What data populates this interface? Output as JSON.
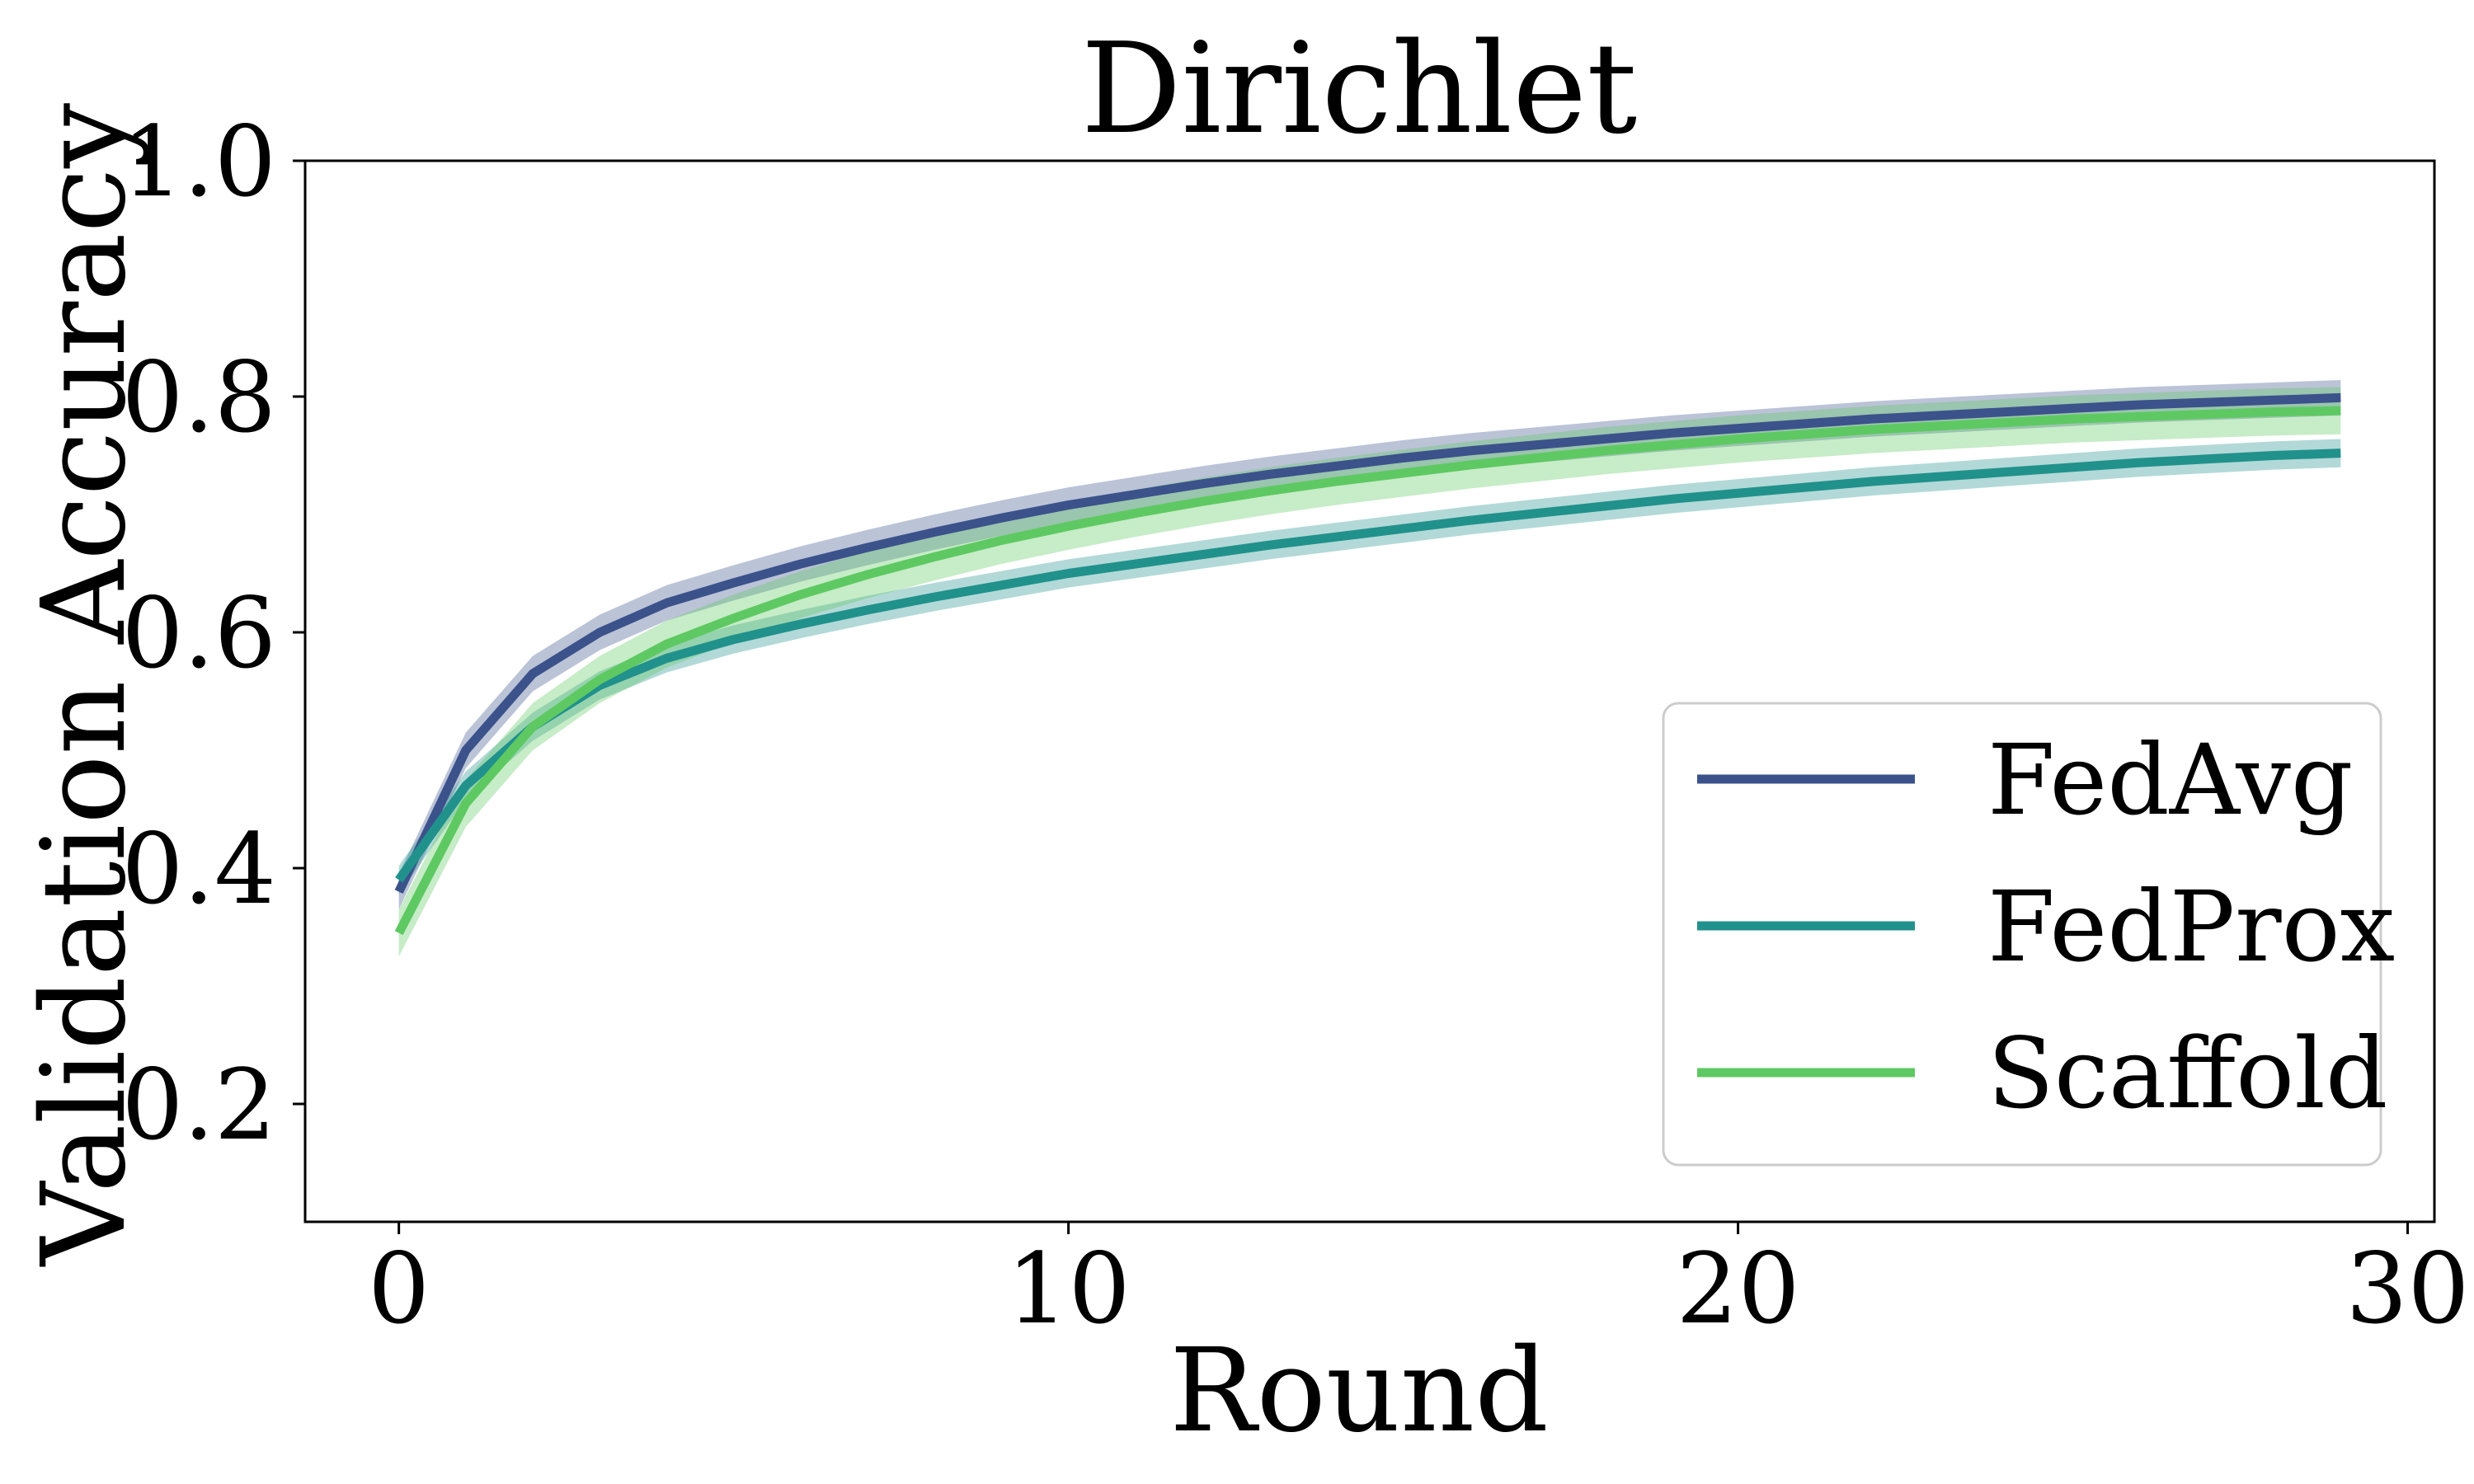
{
  "chart_data": {
    "type": "line",
    "title": "Dirichlet",
    "xlabel": "Round",
    "ylabel": "Validation Accuracy",
    "xlim": [
      -1.4,
      30.4
    ],
    "ylim": [
      0.1,
      1.0
    ],
    "xticks": [
      0,
      10,
      20,
      30
    ],
    "xtick_labels": [
      "0",
      "10",
      "20",
      "30"
    ],
    "yticks": [
      0.2,
      0.4,
      0.6,
      0.8,
      1.0
    ],
    "ytick_labels": [
      "0.2",
      "0.4",
      "0.6",
      "0.8",
      "1.0"
    ],
    "grid": false,
    "legend_position": "lower-right",
    "x": [
      0,
      1,
      2,
      3,
      4,
      5,
      6,
      7,
      8,
      9,
      10,
      11,
      12,
      13,
      14,
      15,
      16,
      17,
      18,
      19,
      20,
      21,
      22,
      23,
      24,
      25,
      26,
      27,
      28,
      29
    ],
    "series": [
      {
        "name": "FedAvg",
        "color": "#3b528b",
        "values": [
          0.38,
          0.5,
          0.565,
          0.6,
          0.625,
          0.642,
          0.658,
          0.672,
          0.685,
          0.697,
          0.708,
          0.717,
          0.726,
          0.734,
          0.741,
          0.748,
          0.754,
          0.759,
          0.764,
          0.769,
          0.773,
          0.777,
          0.781,
          0.784,
          0.787,
          0.79,
          0.793,
          0.795,
          0.797,
          0.799
        ],
        "band": 0.015
      },
      {
        "name": "FedProx",
        "color": "#21918c",
        "values": [
          0.39,
          0.47,
          0.52,
          0.555,
          0.578,
          0.594,
          0.607,
          0.619,
          0.63,
          0.64,
          0.65,
          0.658,
          0.666,
          0.674,
          0.681,
          0.688,
          0.695,
          0.701,
          0.707,
          0.713,
          0.718,
          0.723,
          0.728,
          0.732,
          0.736,
          0.74,
          0.744,
          0.747,
          0.75,
          0.752
        ],
        "band": 0.012
      },
      {
        "name": "Scaffold",
        "color": "#5ec962",
        "values": [
          0.345,
          0.455,
          0.52,
          0.56,
          0.59,
          0.612,
          0.632,
          0.649,
          0.664,
          0.678,
          0.69,
          0.701,
          0.711,
          0.72,
          0.728,
          0.735,
          0.742,
          0.748,
          0.754,
          0.759,
          0.764,
          0.768,
          0.772,
          0.775,
          0.778,
          0.781,
          0.783,
          0.785,
          0.787,
          0.788
        ],
        "band": 0.02
      }
    ]
  }
}
